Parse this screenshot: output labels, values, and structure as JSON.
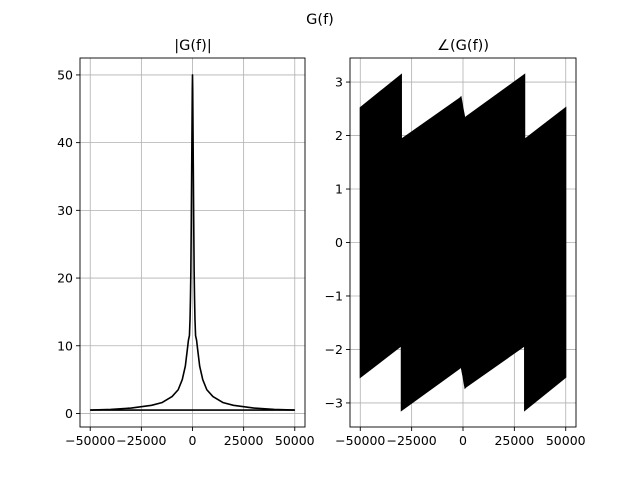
{
  "figure": {
    "suptitle": "G(f)"
  },
  "chart_data": [
    {
      "type": "line",
      "title": "|G(f)|",
      "xlabel": "",
      "ylabel": "",
      "xlim": [
        -55000,
        55000
      ],
      "ylim": [
        -2,
        52.5
      ],
      "grid": true,
      "xticks": [
        -50000,
        -25000,
        0,
        25000,
        50000
      ],
      "xtick_labels": [
        "−50000",
        "−25000",
        "0",
        "25000",
        "50000"
      ],
      "yticks": [
        0,
        10,
        20,
        30,
        40,
        50
      ],
      "ytick_labels": [
        "0",
        "10",
        "20",
        "30",
        "40",
        "50"
      ],
      "series": [
        {
          "color": "#000000",
          "x": [
            -50000,
            -40000,
            -30000,
            -20000,
            -15000,
            -10000,
            -7000,
            -5000,
            -3500,
            -2500,
            -2000,
            -1500,
            -1200,
            -1000,
            -800,
            -600,
            -400,
            -200,
            -100,
            0,
            100,
            200,
            400,
            600,
            800,
            1000,
            1200,
            1500,
            2000,
            2500,
            3500,
            5000,
            7000,
            10000,
            15000,
            20000,
            30000,
            40000,
            50000
          ],
          "y": [
            0.5,
            0.6,
            0.8,
            1.2,
            1.6,
            2.5,
            3.5,
            5.0,
            7.0,
            9.5,
            10.8,
            11.5,
            14.0,
            17.0,
            21.0,
            28.0,
            36.0,
            44.0,
            48.0,
            50.0,
            48.0,
            44.0,
            36.0,
            28.0,
            21.0,
            17.0,
            14.0,
            11.5,
            10.8,
            9.5,
            7.0,
            5.0,
            3.5,
            2.5,
            1.6,
            1.2,
            0.8,
            0.6,
            0.5
          ]
        },
        {
          "color": "#000000",
          "x": [
            -50000,
            50000
          ],
          "y": [
            0.5,
            0.5
          ]
        }
      ]
    },
    {
      "type": "area",
      "title": "∠(G(f))",
      "xlabel": "",
      "ylabel": "",
      "xlim": [
        -55000,
        55000
      ],
      "ylim": [
        -3.45,
        3.45
      ],
      "grid": true,
      "xticks": [
        -50000,
        -25000,
        0,
        25000,
        50000
      ],
      "xtick_labels": [
        "−50000",
        "−25000",
        "0",
        "25000",
        "50000"
      ],
      "yticks": [
        -3,
        -2,
        -1,
        0,
        1,
        2,
        3
      ],
      "ytick_labels": [
        "−3",
        "−2",
        "−1",
        "0",
        "1",
        "2",
        "3"
      ],
      "series": [
        {
          "color": "#000000",
          "x": [
            -50000,
            -30000,
            -30000,
            -1500,
            -1000,
            0,
            1000,
            1500,
            30000,
            30000,
            50000
          ],
          "y_upper": [
            2.52,
            3.14,
            1.93,
            2.7,
            2.72,
            2.5,
            2.3,
            2.35,
            3.14,
            1.93,
            2.52
          ],
          "y_lower": [
            -2.52,
            -1.93,
            -3.14,
            -2.35,
            -2.3,
            -2.5,
            -2.72,
            -2.7,
            -1.93,
            -3.14,
            -2.52
          ]
        }
      ]
    }
  ]
}
